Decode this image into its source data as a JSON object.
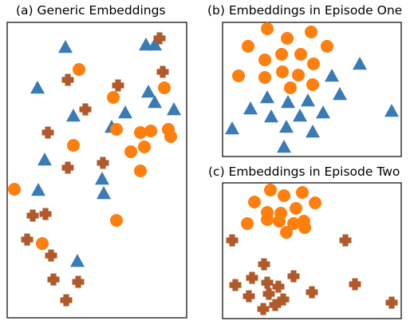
{
  "colors": {
    "blue": "#3a7bb5",
    "orange": "#ff7f0e",
    "brown": "#b05a2c",
    "frame": "#000000"
  },
  "marker_legend": {
    "triangle": "blue",
    "circle": "orange",
    "cross": "brown"
  },
  "chart_data": [
    {
      "type": "scatter",
      "title": "(a) Generic Embeddings",
      "axes": "hidden (no ticks)",
      "xlim": [
        0,
        225
      ],
      "ylim": [
        0,
        370
      ],
      "series": [
        {
          "marker": "triangle",
          "color": "blue",
          "points": [
            [
              73,
              339
            ],
            [
              38,
              288
            ],
            [
              83,
              253
            ],
            [
              131,
              239
            ],
            [
              174,
              342
            ],
            [
              185,
              342
            ],
            [
              148,
              257
            ],
            [
              177,
              283
            ],
            [
              185,
              270
            ],
            [
              209,
              261
            ],
            [
              47,
              198
            ],
            [
              39,
              160
            ],
            [
              119,
              174
            ],
            [
              121,
              156
            ],
            [
              88,
              71
            ]
          ]
        },
        {
          "marker": "circle",
          "color": "orange",
          "points": [
            [
              90,
              311
            ],
            [
              197,
              288
            ],
            [
              133,
              276
            ],
            [
              137,
              236
            ],
            [
              167,
              232
            ],
            [
              180,
              234
            ],
            [
              202,
              236
            ],
            [
              205,
              227
            ],
            [
              83,
              216
            ],
            [
              155,
              208
            ],
            [
              172,
              214
            ],
            [
              167,
              184
            ],
            [
              9,
              161
            ],
            [
              137,
              122
            ],
            [
              44,
              93
            ]
          ]
        },
        {
          "marker": "cross",
          "color": "brown",
          "points": [
            [
              191,
              350
            ],
            [
              195,
              308
            ],
            [
              76,
              298
            ],
            [
              139,
              291
            ],
            [
              98,
              261
            ],
            [
              51,
              232
            ],
            [
              76,
              188
            ],
            [
              120,
              194
            ],
            [
              48,
              130
            ],
            [
              32,
              128
            ],
            [
              25,
              98
            ],
            [
              55,
              78
            ],
            [
              58,
              48
            ],
            [
              89,
              45
            ],
            [
              74,
              22
            ]
          ]
        }
      ]
    },
    {
      "type": "scatter",
      "title": "(b) Embeddings in Episode One",
      "axes": "hidden (no ticks)",
      "xlim": [
        0,
        224
      ],
      "ylim": [
        0,
        168
      ],
      "series": [
        {
          "marker": "circle",
          "color": "orange",
          "points": [
            [
              56,
              160
            ],
            [
              111,
              156
            ],
            [
              81,
              148
            ],
            [
              32,
              138
            ],
            [
              131,
              138
            ],
            [
              53,
              121
            ],
            [
              74,
              128
            ],
            [
              98,
              128
            ],
            [
              20,
              101
            ],
            [
              53,
              99
            ],
            [
              75,
              106
            ],
            [
              95,
              102
            ],
            [
              114,
              116
            ],
            [
              113,
              90
            ],
            [
              85,
              86
            ]
          ]
        },
        {
          "marker": "triangle",
          "color": "blue",
          "points": [
            [
              172,
              116
            ],
            [
              137,
              101
            ],
            [
              56,
              74
            ],
            [
              107,
              70
            ],
            [
              147,
              78
            ],
            [
              82,
              68
            ],
            [
              35,
              60
            ],
            [
              61,
              50
            ],
            [
              126,
              55
            ],
            [
              97,
              51
            ],
            [
              80,
              37
            ],
            [
              113,
              31
            ],
            [
              12,
              35
            ],
            [
              212,
              57
            ],
            [
              77,
              12
            ]
          ]
        }
      ]
    },
    {
      "type": "scatter",
      "title": "(c) Embeddings in Episode Two",
      "axes": "hidden (no ticks)",
      "xlim": [
        0,
        224
      ],
      "ylim": [
        0,
        170
      ],
      "series": [
        {
          "marker": "circle",
          "color": "orange",
          "points": [
            [
              60,
              161
            ],
            [
              77,
              154
            ],
            [
              100,
              158
            ],
            [
              40,
              146
            ],
            [
              116,
              145
            ],
            [
              56,
              133
            ],
            [
              73,
              132
            ],
            [
              92,
              138
            ],
            [
              31,
              119
            ],
            [
              56,
              124
            ],
            [
              71,
              122
            ],
            [
              89,
              119
            ],
            [
              80,
              108
            ],
            [
              103,
              114
            ],
            [
              102,
              122
            ]
          ]
        },
        {
          "marker": "cross",
          "color": "brown",
          "points": [
            [
              12,
              98
            ],
            [
              154,
              98
            ],
            [
              52,
              68
            ],
            [
              16,
              42
            ],
            [
              37,
              51
            ],
            [
              89,
              53
            ],
            [
              56,
              45
            ],
            [
              70,
              40
            ],
            [
              112,
              33
            ],
            [
              166,
              43
            ],
            [
              58,
              31
            ],
            [
              33,
              28
            ],
            [
              76,
              24
            ],
            [
              66,
              17
            ],
            [
              51,
              12
            ],
            [
              212,
              20
            ]
          ]
        }
      ]
    }
  ]
}
